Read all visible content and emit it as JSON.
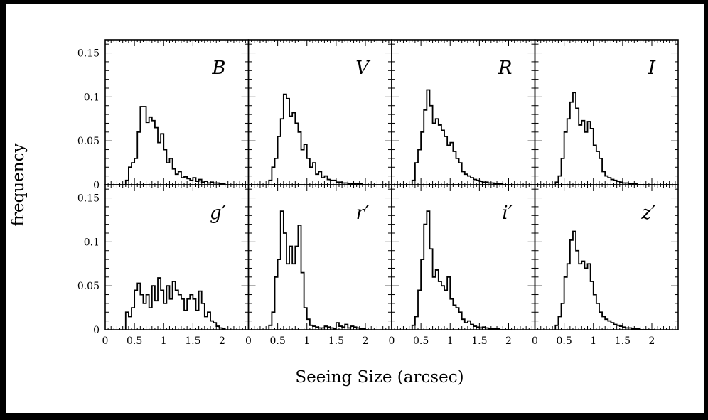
{
  "chart_data": {
    "type": "bar",
    "layout": "2x4 grid of step histograms with shared axes",
    "xlabel": "Seeing Size (arcsec)",
    "ylabel": "frequency",
    "xlim": [
      0,
      2.45
    ],
    "ylim": [
      0,
      0.165
    ],
    "bin_width": 0.05,
    "x_start": 0.35,
    "xticks": [
      "0",
      "0.5",
      "1",
      "1.5",
      "2"
    ],
    "yticks": [
      "0",
      "0.05",
      "0.1",
      "0.15"
    ],
    "panels": [
      {
        "band": "B",
        "values": [
          0.005,
          0.02,
          0.025,
          0.03,
          0.06,
          0.089,
          0.089,
          0.071,
          0.077,
          0.073,
          0.065,
          0.048,
          0.058,
          0.04,
          0.025,
          0.03,
          0.018,
          0.012,
          0.015,
          0.008,
          0.009,
          0.007,
          0.005,
          0.008,
          0.004,
          0.006,
          0.003,
          0.004,
          0.002,
          0.003,
          0.002,
          0.002,
          0.001,
          0.001
        ]
      },
      {
        "band": "V",
        "values": [
          0.005,
          0.02,
          0.03,
          0.055,
          0.075,
          0.103,
          0.098,
          0.078,
          0.082,
          0.07,
          0.06,
          0.04,
          0.046,
          0.03,
          0.02,
          0.025,
          0.012,
          0.015,
          0.008,
          0.01,
          0.006,
          0.005,
          0.005,
          0.003,
          0.003,
          0.002,
          0.002,
          0.001,
          0.001,
          0.001,
          0.001,
          0.001,
          0.0,
          0.0
        ]
      },
      {
        "band": "R",
        "values": [
          0.005,
          0.025,
          0.04,
          0.06,
          0.085,
          0.108,
          0.09,
          0.07,
          0.075,
          0.068,
          0.062,
          0.055,
          0.045,
          0.048,
          0.038,
          0.03,
          0.025,
          0.015,
          0.012,
          0.01,
          0.008,
          0.006,
          0.005,
          0.004,
          0.003,
          0.003,
          0.002,
          0.002,
          0.001,
          0.001,
          0.001,
          0.0,
          0.0,
          0.0
        ]
      },
      {
        "band": "I",
        "values": [
          0.003,
          0.01,
          0.03,
          0.06,
          0.075,
          0.094,
          0.105,
          0.087,
          0.068,
          0.073,
          0.06,
          0.072,
          0.064,
          0.045,
          0.038,
          0.03,
          0.015,
          0.01,
          0.008,
          0.006,
          0.005,
          0.004,
          0.003,
          0.002,
          0.002,
          0.001,
          0.001,
          0.001,
          0.0,
          0.0,
          0.0,
          0.0,
          0.0,
          0.0
        ]
      },
      {
        "band": "g′",
        "values": [
          0.02,
          0.015,
          0.025,
          0.045,
          0.053,
          0.04,
          0.03,
          0.04,
          0.025,
          0.05,
          0.033,
          0.059,
          0.045,
          0.03,
          0.05,
          0.035,
          0.055,
          0.045,
          0.04,
          0.035,
          0.022,
          0.035,
          0.04,
          0.035,
          0.022,
          0.044,
          0.03,
          0.015,
          0.02,
          0.01,
          0.008,
          0.004,
          0.002,
          0.001
        ]
      },
      {
        "band": "r′",
        "values": [
          0.005,
          0.02,
          0.06,
          0.08,
          0.135,
          0.11,
          0.075,
          0.095,
          0.075,
          0.095,
          0.119,
          0.065,
          0.025,
          0.012,
          0.005,
          0.004,
          0.003,
          0.002,
          0.002,
          0.004,
          0.003,
          0.002,
          0.001,
          0.008,
          0.004,
          0.003,
          0.006,
          0.002,
          0.004,
          0.003,
          0.002,
          0.001,
          0.001,
          0.0
        ]
      },
      {
        "band": "i′",
        "values": [
          0.005,
          0.015,
          0.045,
          0.08,
          0.12,
          0.135,
          0.092,
          0.06,
          0.068,
          0.055,
          0.05,
          0.045,
          0.06,
          0.035,
          0.028,
          0.025,
          0.02,
          0.012,
          0.008,
          0.01,
          0.006,
          0.004,
          0.003,
          0.002,
          0.003,
          0.002,
          0.001,
          0.001,
          0.001,
          0.001,
          0.0,
          0.0,
          0.0,
          0.0
        ]
      },
      {
        "band": "z′",
        "values": [
          0.005,
          0.015,
          0.03,
          0.06,
          0.075,
          0.102,
          0.112,
          0.09,
          0.075,
          0.078,
          0.07,
          0.075,
          0.055,
          0.04,
          0.03,
          0.02,
          0.015,
          0.012,
          0.01,
          0.008,
          0.006,
          0.005,
          0.004,
          0.003,
          0.002,
          0.002,
          0.001,
          0.001,
          0.001,
          0.0,
          0.0,
          0.0,
          0.0,
          0.0
        ]
      }
    ]
  }
}
